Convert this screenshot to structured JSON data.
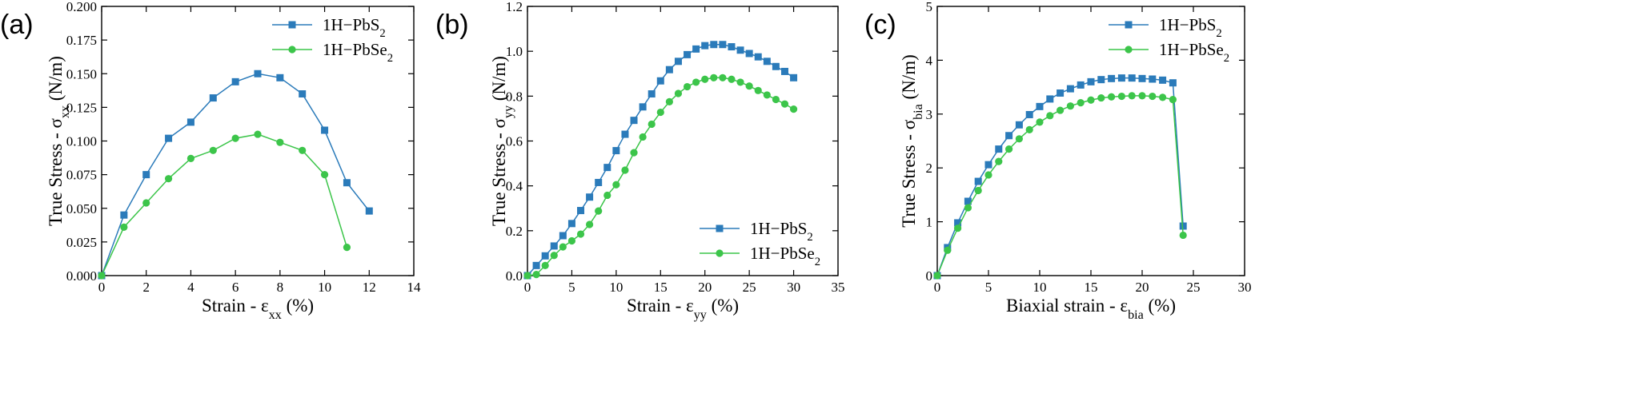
{
  "colors": {
    "blue": "#2b7bba",
    "green": "#3cc54a"
  },
  "chart_data": [
    {
      "type": "line",
      "panel_label": "(a)",
      "xlabel": "Strain - ε",
      "xlabel_sub": "xx",
      "xlabel_suffix": " (%)",
      "ylabel": "True Stress - σ",
      "ylabel_sub": "xx",
      "ylabel_suffix": " (N/m)",
      "xlim": [
        0,
        14
      ],
      "ylim": [
        0,
        0.2
      ],
      "xticks": [
        0,
        2,
        4,
        6,
        8,
        10,
        12,
        14
      ],
      "yticks": [
        0,
        0.025,
        0.05,
        0.075,
        0.1,
        0.125,
        0.15,
        0.175,
        0.2
      ],
      "ytick_decimals": 3,
      "legend_position": "top-right",
      "series": [
        {
          "name": "1H−PbS",
          "name_sub": "2",
          "marker": "square",
          "color": "#2b7bba",
          "x": [
            0,
            1,
            2,
            3,
            4,
            5,
            6,
            7,
            8,
            9,
            10,
            11,
            12
          ],
          "y": [
            0,
            0.045,
            0.075,
            0.102,
            0.114,
            0.132,
            0.144,
            0.15,
            0.147,
            0.135,
            0.108,
            0.069,
            0.048
          ]
        },
        {
          "name": "1H−PbSe",
          "name_sub": "2",
          "marker": "circle",
          "color": "#3cc54a",
          "x": [
            0,
            1,
            2,
            3,
            4,
            5,
            6,
            7,
            8,
            9,
            10,
            11
          ],
          "y": [
            0,
            0.036,
            0.054,
            0.072,
            0.087,
            0.093,
            0.102,
            0.105,
            0.099,
            0.093,
            0.075,
            0.021
          ]
        }
      ]
    },
    {
      "type": "line",
      "panel_label": "(b)",
      "xlabel": "Strain - ε",
      "xlabel_sub": "yy",
      "xlabel_suffix": " (%)",
      "ylabel": "True Stress - σ",
      "ylabel_sub": "yy",
      "ylabel_suffix": " (N/m)",
      "xlim": [
        0,
        35
      ],
      "ylim": [
        0,
        1.2
      ],
      "xticks": [
        0,
        5,
        10,
        15,
        20,
        25,
        30,
        35
      ],
      "yticks": [
        0,
        0.2,
        0.4,
        0.6,
        0.8,
        1.0,
        1.2
      ],
      "ytick_decimals": 1,
      "legend_position": "bottom-right",
      "series": [
        {
          "name": "1H−PbS",
          "name_sub": "2",
          "marker": "square",
          "color": "#2b7bba",
          "x": [
            0,
            1,
            2,
            3,
            4,
            5,
            6,
            7,
            8,
            9,
            10,
            11,
            12,
            13,
            14,
            15,
            16,
            17,
            18,
            19,
            20,
            21,
            22,
            23,
            24,
            25,
            26,
            27,
            28,
            29,
            30
          ],
          "y": [
            0,
            0.045,
            0.088,
            0.132,
            0.178,
            0.232,
            0.29,
            0.35,
            0.415,
            0.482,
            0.557,
            0.63,
            0.692,
            0.752,
            0.81,
            0.868,
            0.918,
            0.955,
            0.985,
            1.01,
            1.025,
            1.03,
            1.03,
            1.02,
            1.005,
            0.99,
            0.975,
            0.955,
            0.932,
            0.91,
            0.882
          ]
        },
        {
          "name": "1H−PbSe",
          "name_sub": "2",
          "marker": "circle",
          "color": "#3cc54a",
          "x": [
            0,
            1,
            2,
            3,
            4,
            5,
            6,
            7,
            8,
            9,
            10,
            11,
            12,
            13,
            14,
            15,
            16,
            17,
            18,
            19,
            20,
            21,
            22,
            23,
            24,
            25,
            26,
            27,
            28,
            29,
            30
          ],
          "y": [
            0,
            0.005,
            0.045,
            0.09,
            0.128,
            0.155,
            0.185,
            0.228,
            0.288,
            0.358,
            0.405,
            0.47,
            0.548,
            0.618,
            0.675,
            0.728,
            0.775,
            0.812,
            0.842,
            0.862,
            0.875,
            0.882,
            0.882,
            0.875,
            0.862,
            0.845,
            0.825,
            0.805,
            0.785,
            0.765,
            0.742
          ]
        }
      ]
    },
    {
      "type": "line",
      "panel_label": "(c)",
      "xlabel": "Biaxial strain - ε",
      "xlabel_sub": "bia",
      "xlabel_suffix": " (%)",
      "ylabel": "True Stress - σ",
      "ylabel_sub": "bia",
      "ylabel_suffix": " (N/m)",
      "xlim": [
        0,
        30
      ],
      "ylim": [
        0,
        5
      ],
      "xticks": [
        0,
        5,
        10,
        15,
        20,
        25,
        30
      ],
      "yticks": [
        0,
        1,
        2,
        3,
        4,
        5
      ],
      "ytick_decimals": 0,
      "legend_position": "top-right",
      "series": [
        {
          "name": "1H−PbS",
          "name_sub": "2",
          "marker": "square",
          "color": "#2b7bba",
          "x": [
            0,
            1,
            2,
            3,
            4,
            5,
            6,
            7,
            8,
            9,
            10,
            11,
            12,
            13,
            14,
            15,
            16,
            17,
            18,
            19,
            20,
            21,
            22,
            23,
            24
          ],
          "y": [
            0,
            0.52,
            0.98,
            1.38,
            1.75,
            2.06,
            2.35,
            2.6,
            2.8,
            2.99,
            3.14,
            3.28,
            3.39,
            3.47,
            3.54,
            3.6,
            3.64,
            3.66,
            3.67,
            3.67,
            3.66,
            3.65,
            3.63,
            3.58,
            0.92
          ]
        },
        {
          "name": "1H−PbSe",
          "name_sub": "2",
          "marker": "circle",
          "color": "#3cc54a",
          "x": [
            0,
            1,
            2,
            3,
            4,
            5,
            6,
            7,
            8,
            9,
            10,
            11,
            12,
            13,
            14,
            15,
            16,
            17,
            18,
            19,
            20,
            21,
            22,
            23,
            24
          ],
          "y": [
            0,
            0.47,
            0.88,
            1.26,
            1.58,
            1.87,
            2.12,
            2.35,
            2.54,
            2.71,
            2.85,
            2.97,
            3.07,
            3.15,
            3.21,
            3.26,
            3.3,
            3.32,
            3.33,
            3.34,
            3.34,
            3.33,
            3.31,
            3.27,
            0.75
          ]
        }
      ]
    }
  ]
}
